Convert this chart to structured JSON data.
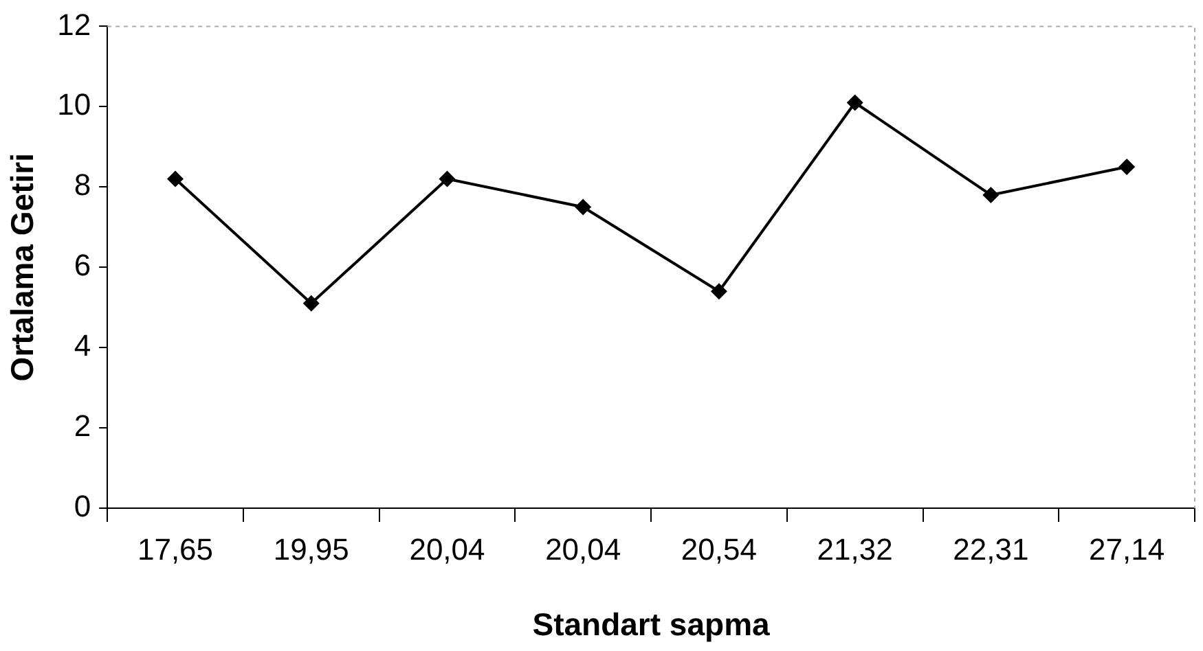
{
  "chart_data": {
    "type": "line",
    "xlabel": "Standart sapma",
    "ylabel": "Ortalama Getiri",
    "categories": [
      "17,65",
      "19,95",
      "20,04",
      "20,04",
      "20,54",
      "21,32",
      "22,31",
      "27,14"
    ],
    "series": [
      {
        "color": "#000000",
        "values": [
          8.2,
          5.1,
          8.2,
          7.5,
          5.4,
          10.1,
          7.8,
          8.5
        ]
      }
    ],
    "ylim": [
      0,
      12
    ],
    "yticks": [
      0,
      2,
      4,
      6,
      8,
      10,
      12
    ],
    "grid": false,
    "marker": "diamond",
    "line_style": "solid"
  }
}
